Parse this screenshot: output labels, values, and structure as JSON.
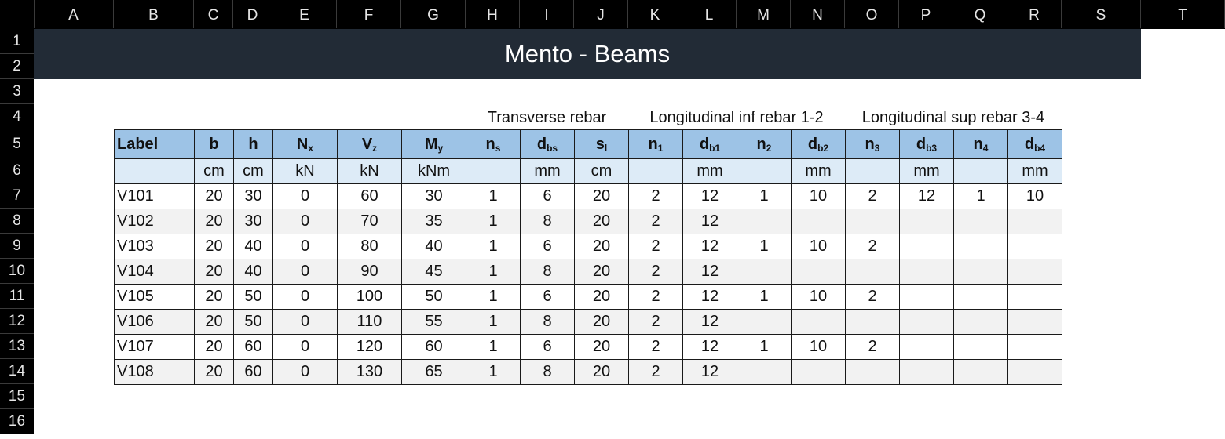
{
  "columns": [
    "A",
    "B",
    "C",
    "D",
    "E",
    "F",
    "G",
    "H",
    "I",
    "J",
    "K",
    "L",
    "M",
    "N",
    "O",
    "P",
    "Q",
    "R",
    "S",
    "T"
  ],
  "rows": [
    "1",
    "2",
    "3",
    "4",
    "5",
    "6",
    "7",
    "8",
    "9",
    "10",
    "11",
    "12",
    "13",
    "14",
    "15",
    "16"
  ],
  "title": "Mento - Beams",
  "group_labels": {
    "transverse": "Transverse rebar",
    "long_inf": "Longitudinal inf rebar 1-2",
    "long_sup": "Longitudinal sup rebar 3-4"
  },
  "headers": [
    {
      "main": "Label",
      "sub": ""
    },
    {
      "main": "b",
      "sub": ""
    },
    {
      "main": "h",
      "sub": ""
    },
    {
      "main": "N",
      "sub": "x"
    },
    {
      "main": "V",
      "sub": "z"
    },
    {
      "main": "M",
      "sub": "y"
    },
    {
      "main": "n",
      "sub": "s"
    },
    {
      "main": "d",
      "sub": "bs"
    },
    {
      "main": "s",
      "sub": "l"
    },
    {
      "main": "n",
      "sub": "1"
    },
    {
      "main": "d",
      "sub": "b1"
    },
    {
      "main": "n",
      "sub": "2"
    },
    {
      "main": "d",
      "sub": "b2"
    },
    {
      "main": "n",
      "sub": "3"
    },
    {
      "main": "d",
      "sub": "b3"
    },
    {
      "main": "n",
      "sub": "4"
    },
    {
      "main": "d",
      "sub": "b4"
    }
  ],
  "units": [
    "",
    "cm",
    "cm",
    "kN",
    "kN",
    "kNm",
    "",
    "mm",
    "cm",
    "",
    "mm",
    "",
    "mm",
    "",
    "mm",
    "",
    "mm"
  ],
  "data_rows": [
    [
      "V101",
      "20",
      "30",
      "0",
      "60",
      "30",
      "1",
      "6",
      "20",
      "2",
      "12",
      "1",
      "10",
      "2",
      "12",
      "1",
      "10"
    ],
    [
      "V102",
      "20",
      "30",
      "0",
      "70",
      "35",
      "1",
      "8",
      "20",
      "2",
      "12",
      "",
      "",
      "",
      "",
      "",
      ""
    ],
    [
      "V103",
      "20",
      "40",
      "0",
      "80",
      "40",
      "1",
      "6",
      "20",
      "2",
      "12",
      "1",
      "10",
      "2",
      "",
      "",
      ""
    ],
    [
      "V104",
      "20",
      "40",
      "0",
      "90",
      "45",
      "1",
      "8",
      "20",
      "2",
      "12",
      "",
      "",
      "",
      "",
      "",
      ""
    ],
    [
      "V105",
      "20",
      "50",
      "0",
      "100",
      "50",
      "1",
      "6",
      "20",
      "2",
      "12",
      "1",
      "10",
      "2",
      "",
      "",
      ""
    ],
    [
      "V106",
      "20",
      "50",
      "0",
      "110",
      "55",
      "1",
      "8",
      "20",
      "2",
      "12",
      "",
      "",
      "",
      "",
      "",
      ""
    ],
    [
      "V107",
      "20",
      "60",
      "0",
      "120",
      "60",
      "1",
      "6",
      "20",
      "2",
      "12",
      "1",
      "10",
      "2",
      "",
      "",
      ""
    ],
    [
      "V108",
      "20",
      "60",
      "0",
      "130",
      "65",
      "1",
      "8",
      "20",
      "2",
      "12",
      "",
      "",
      "",
      "",
      "",
      ""
    ]
  ]
}
